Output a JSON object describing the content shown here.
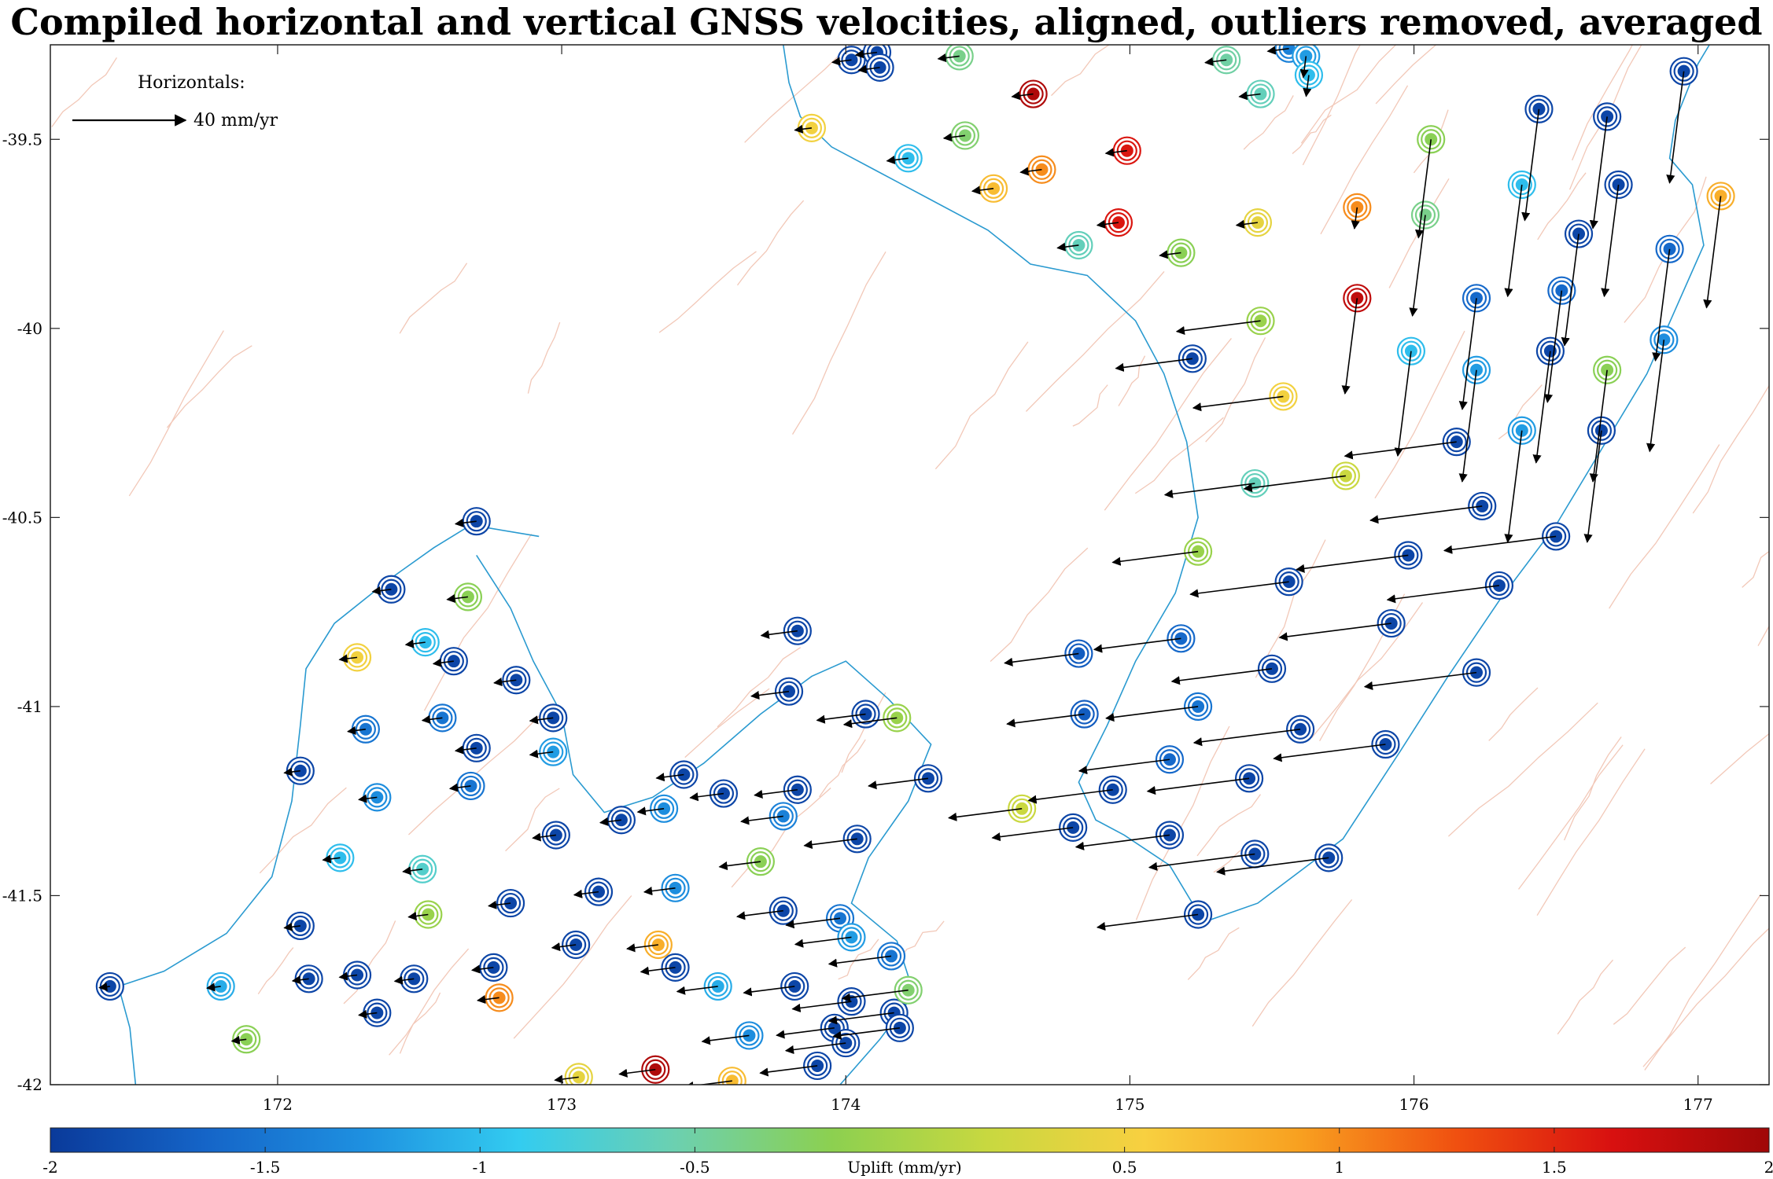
{
  "title": "Compiled horizontal and vertical GNSS velocities, aligned, outliers removed, averaged",
  "legend": {
    "heading": "Horizontals:",
    "scale_label": "40 mm/yr",
    "scale_mm_per_yr": 40
  },
  "axes": {
    "lon_range": [
      171.2,
      177.25
    ],
    "lat_range": [
      -42.0,
      -39.25
    ],
    "x_ticks": [
      "172",
      "173",
      "174",
      "175",
      "176",
      "177"
    ],
    "x_tick_values": [
      172,
      173,
      174,
      175,
      176,
      177
    ],
    "y_ticks": [
      "-39.5",
      "-40",
      "-40.5",
      "-41",
      "-41.5",
      "-42"
    ],
    "y_tick_values": [
      -39.5,
      -40,
      -40.5,
      -41,
      -41.5,
      -42
    ]
  },
  "colorbar": {
    "label": "Uplift (mm/yr)",
    "range": [
      -2,
      2
    ],
    "tick_labels": [
      "-2",
      "-1.5",
      "-1",
      "-0.5",
      "0.5",
      "1",
      "1.5",
      "2"
    ],
    "tick_values": [
      -2,
      -1.5,
      -1,
      -0.5,
      0.5,
      1,
      1.5,
      2
    ],
    "colormap": [
      "#0a3a9a",
      "#1565c8",
      "#1e90e0",
      "#33ccf0",
      "#6cd0b0",
      "#8cd050",
      "#c8d840",
      "#f8d040",
      "#f8a020",
      "#f05010",
      "#d81010",
      "#a00808"
    ]
  },
  "colors": {
    "coast": "#2a9ad0",
    "faults": "#f2c8b8",
    "arrows": "#000000"
  },
  "chart_data": {
    "type": "scatter",
    "title": "Compiled horizontal and vertical GNSS velocities, aligned, outliers removed, averaged",
    "xlim": [
      171.2,
      177.25
    ],
    "ylim": [
      -42.0,
      -39.25
    ],
    "note_units": "lon deg E, lat deg, uplift mm/yr",
    "stations": [
      [
        174.02,
        -39.29,
        -1.9
      ],
      [
        174.11,
        -39.27,
        -1.9
      ],
      [
        174.12,
        -39.31,
        -1.9
      ],
      [
        174.4,
        -39.28,
        -0.4
      ],
      [
        175.34,
        -39.29,
        -0.5
      ],
      [
        175.56,
        -39.26,
        -1.4
      ],
      [
        175.62,
        -39.28,
        -1.2
      ],
      [
        175.63,
        -39.33,
        -1.0
      ],
      [
        175.46,
        -39.38,
        -0.6
      ],
      [
        174.66,
        -39.38,
        1.9
      ],
      [
        173.88,
        -39.47,
        0.5
      ],
      [
        174.42,
        -39.49,
        -0.3
      ],
      [
        174.22,
        -39.55,
        -1.0
      ],
      [
        174.69,
        -39.58,
        1.0
      ],
      [
        174.52,
        -39.63,
        0.7
      ],
      [
        174.99,
        -39.53,
        1.6
      ],
      [
        175.8,
        -39.68,
        1.0
      ],
      [
        176.04,
        -39.7,
        -0.4
      ],
      [
        175.45,
        -39.72,
        0.4
      ],
      [
        174.96,
        -39.72,
        1.6
      ],
      [
        174.82,
        -39.78,
        -0.6
      ],
      [
        175.18,
        -39.8,
        -0.2
      ],
      [
        176.06,
        -39.5,
        -0.2
      ],
      [
        176.38,
        -39.62,
        -1.0
      ],
      [
        176.44,
        -39.42,
        -1.9
      ],
      [
        176.68,
        -39.44,
        -1.9
      ],
      [
        176.72,
        -39.62,
        -1.9
      ],
      [
        176.95,
        -39.32,
        -1.9
      ],
      [
        177.08,
        -39.65,
        0.8
      ],
      [
        176.58,
        -39.75,
        -1.9
      ],
      [
        176.9,
        -39.79,
        -1.6
      ],
      [
        176.52,
        -39.9,
        -1.6
      ],
      [
        176.22,
        -39.92,
        -1.6
      ],
      [
        175.8,
        -39.92,
        1.8
      ],
      [
        175.46,
        -39.98,
        -0.1
      ],
      [
        175.22,
        -40.08,
        -1.9
      ],
      [
        175.99,
        -40.06,
        -1.0
      ],
      [
        176.22,
        -40.11,
        -1.2
      ],
      [
        176.48,
        -40.06,
        -1.9
      ],
      [
        176.88,
        -40.03,
        -1.3
      ],
      [
        176.68,
        -40.11,
        -0.2
      ],
      [
        175.54,
        -40.18,
        0.5
      ],
      [
        176.38,
        -40.27,
        -1.2
      ],
      [
        176.66,
        -40.27,
        -1.9
      ],
      [
        176.15,
        -40.3,
        -1.9
      ],
      [
        175.76,
        -40.39,
        0.2
      ],
      [
        175.44,
        -40.41,
        -0.6
      ],
      [
        176.24,
        -40.47,
        -1.9
      ],
      [
        176.5,
        -40.55,
        -1.9
      ],
      [
        175.24,
        -40.59,
        -0.1
      ],
      [
        175.98,
        -40.6,
        -1.9
      ],
      [
        175.56,
        -40.67,
        -1.9
      ],
      [
        176.3,
        -40.68,
        -1.9
      ],
      [
        175.92,
        -40.78,
        -1.9
      ],
      [
        175.18,
        -40.82,
        -1.6
      ],
      [
        174.82,
        -40.86,
        -1.7
      ],
      [
        176.22,
        -40.91,
        -1.9
      ],
      [
        175.5,
        -40.9,
        -1.9
      ],
      [
        175.24,
        -41.0,
        -1.5
      ],
      [
        174.84,
        -41.02,
        -1.7
      ],
      [
        175.6,
        -41.06,
        -1.9
      ],
      [
        175.9,
        -41.1,
        -1.9
      ],
      [
        175.14,
        -41.14,
        -1.6
      ],
      [
        175.42,
        -41.19,
        -1.9
      ],
      [
        174.94,
        -41.22,
        -1.9
      ],
      [
        174.62,
        -41.27,
        0.2
      ],
      [
        174.8,
        -41.32,
        -1.9
      ],
      [
        175.14,
        -41.34,
        -1.9
      ],
      [
        175.44,
        -41.39,
        -1.9
      ],
      [
        175.7,
        -41.4,
        -1.9
      ],
      [
        175.24,
        -41.55,
        -1.9
      ],
      [
        171.41,
        -41.74,
        -1.9
      ],
      [
        171.8,
        -41.74,
        -1.1
      ],
      [
        171.89,
        -41.88,
        -0.2
      ],
      [
        172.08,
        -41.58,
        -1.9
      ],
      [
        172.11,
        -41.72,
        -1.9
      ],
      [
        172.28,
        -41.71,
        -1.9
      ],
      [
        172.35,
        -41.81,
        -1.9
      ],
      [
        172.48,
        -41.72,
        -1.9
      ],
      [
        172.53,
        -41.55,
        -0.1
      ],
      [
        172.51,
        -41.43,
        -0.7
      ],
      [
        172.22,
        -41.4,
        -1.0
      ],
      [
        172.35,
        -41.24,
        -1.3
      ],
      [
        172.08,
        -41.17,
        -1.9
      ],
      [
        172.31,
        -41.06,
        -1.5
      ],
      [
        172.28,
        -40.87,
        0.5
      ],
      [
        172.52,
        -40.83,
        -1.0
      ],
      [
        172.62,
        -40.88,
        -1.9
      ],
      [
        172.4,
        -40.69,
        -1.9
      ],
      [
        172.67,
        -40.71,
        -0.2
      ],
      [
        172.7,
        -40.51,
        -1.9
      ],
      [
        172.84,
        -40.93,
        -1.9
      ],
      [
        172.97,
        -41.03,
        -1.9
      ],
      [
        172.97,
        -41.12,
        -1.2
      ],
      [
        172.58,
        -41.03,
        -1.5
      ],
      [
        172.7,
        -41.11,
        -1.9
      ],
      [
        172.68,
        -41.21,
        -1.5
      ],
      [
        172.98,
        -41.34,
        -1.9
      ],
      [
        173.21,
        -41.3,
        -1.9
      ],
      [
        172.76,
        -41.69,
        -1.9
      ],
      [
        172.78,
        -41.77,
        1.0
      ],
      [
        172.82,
        -41.52,
        -1.9
      ],
      [
        173.13,
        -41.49,
        -1.9
      ],
      [
        173.05,
        -41.63,
        -1.9
      ],
      [
        173.06,
        -41.98,
        0.4
      ],
      [
        173.33,
        -41.96,
        1.9
      ],
      [
        173.34,
        -41.63,
        0.8
      ],
      [
        173.4,
        -41.69,
        -1.9
      ],
      [
        173.4,
        -41.48,
        -1.3
      ],
      [
        173.36,
        -41.27,
        -1.3
      ],
      [
        173.43,
        -41.18,
        -1.9
      ],
      [
        173.57,
        -41.23,
        -1.9
      ],
      [
        173.55,
        -41.74,
        -1.1
      ],
      [
        173.6,
        -41.99,
        0.7
      ],
      [
        173.66,
        -41.87,
        -1.3
      ],
      [
        173.7,
        -41.41,
        -0.2
      ],
      [
        173.78,
        -41.29,
        -1.4
      ],
      [
        173.78,
        -41.54,
        -1.9
      ],
      [
        173.82,
        -41.74,
        -1.9
      ],
      [
        173.9,
        -41.95,
        -1.9
      ],
      [
        173.96,
        -41.85,
        -1.9
      ],
      [
        174.0,
        -41.89,
        -1.9
      ],
      [
        173.98,
        -41.56,
        -1.5
      ],
      [
        174.02,
        -41.61,
        -1.2
      ],
      [
        174.02,
        -41.78,
        -1.9
      ],
      [
        174.04,
        -41.35,
        -1.9
      ],
      [
        174.16,
        -41.66,
        -1.5
      ],
      [
        174.17,
        -41.81,
        -1.9
      ],
      [
        174.19,
        -41.85,
        -1.9
      ],
      [
        174.22,
        -41.75,
        -0.3
      ],
      [
        174.07,
        -41.02,
        -1.9
      ],
      [
        174.18,
        -41.03,
        -0.1
      ],
      [
        174.29,
        -41.19,
        -1.9
      ],
      [
        173.83,
        -41.22,
        -1.9
      ],
      [
        173.83,
        -40.8,
        -1.9
      ],
      [
        173.8,
        -40.96,
        -1.9
      ]
    ]
  }
}
